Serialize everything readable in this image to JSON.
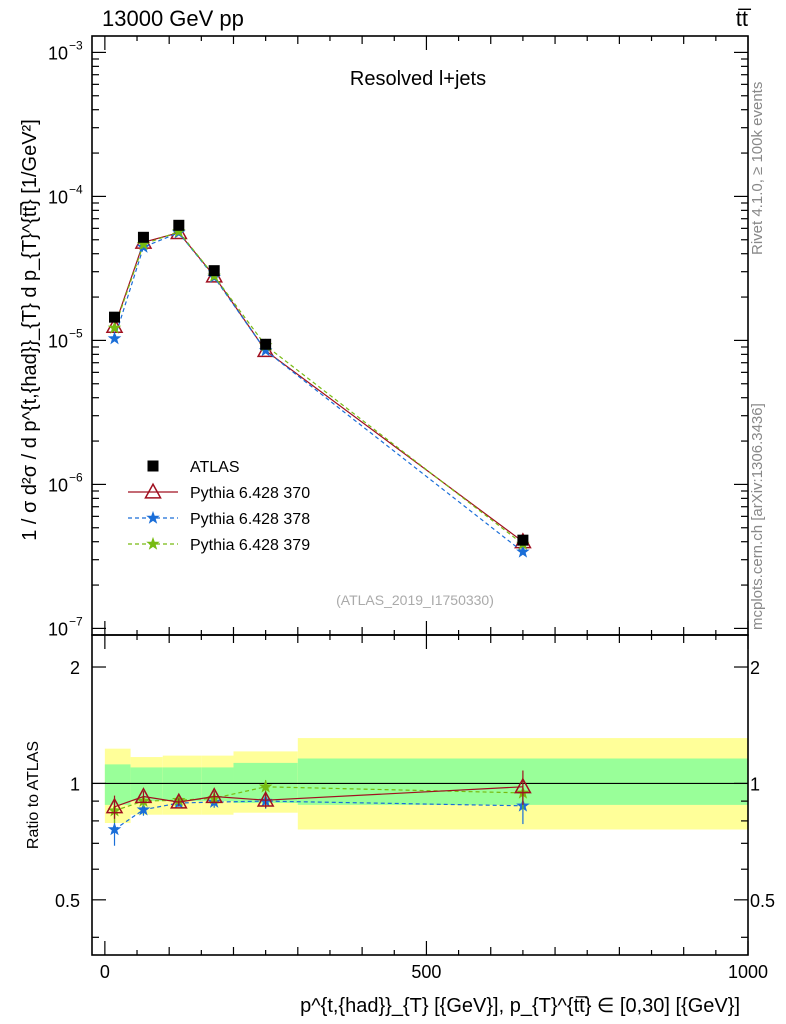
{
  "header": {
    "energy_label": "13000 GeV pp",
    "process_label": "tt̅"
  },
  "side_labels": {
    "rivet": "Rivet 4.1.0, ≥ 100k events",
    "mcplots": "mcplots.cern.ch [arXiv:1306.3436]"
  },
  "chart_data": [
    {
      "type": "scatter",
      "title": "Resolved l+jets",
      "watermark": "(ATLAS_2019_I1750330)",
      "xlabel": "p^{t,{had}}_{T} [{GeV}], p_{T}^{tt̅} ∈ [0,30] [{GeV}]",
      "ylabel": "1 / σ d²σ / d p^{t,{had}}_{T} d p_{T}^{tt̅} [1/GeV²]",
      "xlim": [
        -20,
        1000
      ],
      "ylim": [
        9e-08,
        0.0013
      ],
      "yscale": "log",
      "x_ticks": [
        0,
        500,
        1000
      ],
      "y_ticks": [
        {
          "value": 1e-07,
          "mantissa": "10",
          "exp": "−7"
        },
        {
          "value": 1e-06,
          "mantissa": "10",
          "exp": "−6"
        },
        {
          "value": 1e-05,
          "mantissa": "10",
          "exp": "−5"
        },
        {
          "value": 0.0001,
          "mantissa": "10",
          "exp": "−4"
        },
        {
          "value": 0.001,
          "mantissa": "10",
          "exp": "−3"
        }
      ],
      "legend_position": "bottom-left",
      "bin_edges": [
        0,
        40,
        90,
        150,
        200,
        300,
        1000
      ],
      "x": [
        15,
        60,
        115,
        170,
        250,
        650
      ],
      "series": [
        {
          "name": "ATLAS",
          "color": "#000000",
          "marker": "square",
          "line": "none",
          "values": [
            1.45e-05,
            5.2e-05,
            6.3e-05,
            3.05e-05,
            9.4e-06,
            4.1e-07
          ]
        },
        {
          "name": "Pythia 6.428 370",
          "color": "#a01020",
          "marker": "triangle-open",
          "line": "solid",
          "values": [
            1.25e-05,
            4.8e-05,
            5.6e-05,
            2.8e-05,
            8.5e-06,
            4e-07
          ]
        },
        {
          "name": "Pythia 6.428 378",
          "color": "#1a6ed8",
          "marker": "star",
          "line": "dashed",
          "values": [
            1.03e-05,
            4.45e-05,
            5.6e-05,
            2.75e-05,
            8.5e-06,
            3.4e-07
          ]
        },
        {
          "name": "Pythia 6.428 379",
          "color": "#77bb11",
          "marker": "star",
          "line": "dashed",
          "values": [
            1.22e-05,
            4.65e-05,
            5.7e-05,
            2.8e-05,
            9.2e-06,
            3.85e-07
          ]
        }
      ]
    },
    {
      "type": "scatter",
      "ylabel": "Ratio to ATLAS",
      "xlim": [
        -20,
        1000
      ],
      "ylim": [
        0.36,
        2.42
      ],
      "yscale": "log",
      "x_ticks": [
        0,
        500,
        1000
      ],
      "y_ticks": [
        0.5,
        1,
        2
      ],
      "x_tick_labels": [
        "0",
        "500",
        "1000"
      ],
      "y_tick_labels": [
        "0.5",
        "1",
        "2"
      ],
      "bin_edges": [
        0,
        40,
        90,
        150,
        200,
        300,
        1000
      ],
      "band_inner": [
        [
          0.88,
          1.12
        ],
        [
          0.9,
          1.1
        ],
        [
          0.9,
          1.1
        ],
        [
          0.9,
          1.1
        ],
        [
          0.89,
          1.13
        ],
        [
          0.88,
          1.16
        ]
      ],
      "band_outer": [
        [
          0.79,
          1.23
        ],
        [
          0.83,
          1.17
        ],
        [
          0.83,
          1.18
        ],
        [
          0.83,
          1.18
        ],
        [
          0.84,
          1.21
        ],
        [
          0.76,
          1.31
        ]
      ],
      "x": [
        15,
        60,
        115,
        170,
        250,
        650
      ],
      "series": [
        {
          "name": "Pythia 6.428 370",
          "color": "#a01020",
          "marker": "triangle-open",
          "line": "solid",
          "values": [
            0.87,
            0.925,
            0.895,
            0.925,
            0.905,
            0.98
          ],
          "err": [
            0.06,
            0.03,
            0.02,
            0.03,
            0.04,
            0.1
          ]
        },
        {
          "name": "Pythia 6.428 378",
          "color": "#1a6ed8",
          "marker": "star",
          "line": "dashed",
          "values": [
            0.76,
            0.855,
            0.89,
            0.895,
            0.9,
            0.875
          ],
          "err": [
            0.07,
            0.03,
            0.02,
            0.03,
            0.04,
            0.09
          ]
        },
        {
          "name": "Pythia 6.428 379",
          "color": "#77bb11",
          "marker": "star",
          "line": "dashed",
          "values": [
            0.85,
            0.9,
            0.905,
            0.915,
            0.98,
            0.945
          ],
          "err": [
            0.06,
            0.03,
            0.02,
            0.03,
            0.04,
            0.09
          ]
        }
      ]
    }
  ],
  "colors": {
    "band_inner": "#99ff99",
    "band_outer": "#ffff99"
  }
}
